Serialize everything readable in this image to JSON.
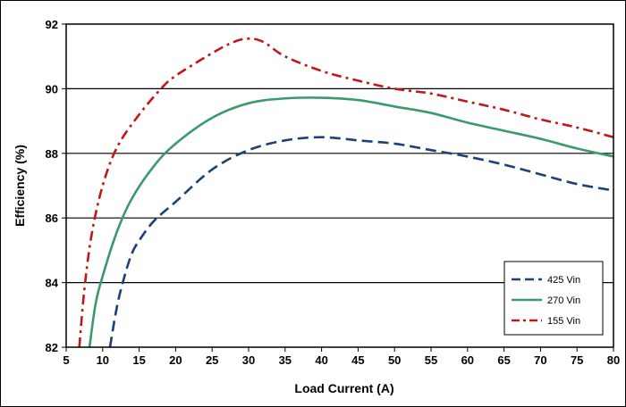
{
  "chart_data": {
    "type": "line",
    "title": "",
    "xlabel": "Load Current (A)",
    "ylabel": "Efficiency (%)",
    "xlim": [
      5,
      80
    ],
    "ylim": [
      82,
      92
    ],
    "xticks": [
      5,
      10,
      15,
      20,
      25,
      30,
      35,
      40,
      45,
      50,
      55,
      60,
      65,
      70,
      75,
      80
    ],
    "yticks": [
      82,
      84,
      86,
      88,
      90,
      92
    ],
    "grid": "horizontal",
    "legend_position": "bottom-right",
    "series": [
      {
        "name": "425 Vin",
        "color": "#1f3f7a",
        "dash": "dashed",
        "points": [
          [
            11,
            82
          ],
          [
            12,
            83.3
          ],
          [
            13,
            84.2
          ],
          [
            14,
            84.9
          ],
          [
            15,
            85.3
          ],
          [
            17,
            85.9
          ],
          [
            20,
            86.5
          ],
          [
            25,
            87.5
          ],
          [
            30,
            88.1
          ],
          [
            35,
            88.4
          ],
          [
            40,
            88.5
          ],
          [
            45,
            88.4
          ],
          [
            50,
            88.3
          ],
          [
            55,
            88.1
          ],
          [
            60,
            87.9
          ],
          [
            65,
            87.65
          ],
          [
            70,
            87.35
          ],
          [
            75,
            87.05
          ],
          [
            80,
            86.85
          ]
        ]
      },
      {
        "name": "270 Vin",
        "color": "#3a9a6a",
        "dash": "solid",
        "points": [
          [
            8.2,
            82
          ],
          [
            9,
            83.3
          ],
          [
            10,
            84.2
          ],
          [
            12,
            85.6
          ],
          [
            14,
            86.6
          ],
          [
            17,
            87.6
          ],
          [
            20,
            88.3
          ],
          [
            25,
            89.1
          ],
          [
            30,
            89.55
          ],
          [
            35,
            89.7
          ],
          [
            40,
            89.72
          ],
          [
            45,
            89.65
          ],
          [
            50,
            89.45
          ],
          [
            55,
            89.25
          ],
          [
            60,
            88.95
          ],
          [
            65,
            88.7
          ],
          [
            70,
            88.45
          ],
          [
            75,
            88.15
          ],
          [
            80,
            87.9
          ]
        ]
      },
      {
        "name": "155 Vin",
        "color": "#c01818",
        "dash": "dash-dot",
        "points": [
          [
            6.8,
            82
          ],
          [
            7.5,
            83.8
          ],
          [
            8.5,
            85.5
          ],
          [
            10,
            87
          ],
          [
            12,
            88.2
          ],
          [
            15,
            89.2
          ],
          [
            18,
            90
          ],
          [
            20,
            90.4
          ],
          [
            25,
            91.1
          ],
          [
            28,
            91.45
          ],
          [
            30,
            91.55
          ],
          [
            32,
            91.45
          ],
          [
            35,
            91
          ],
          [
            40,
            90.55
          ],
          [
            45,
            90.25
          ],
          [
            50,
            90
          ],
          [
            55,
            89.85
          ],
          [
            60,
            89.6
          ],
          [
            65,
            89.35
          ],
          [
            70,
            89.05
          ],
          [
            75,
            88.8
          ],
          [
            80,
            88.5
          ]
        ]
      }
    ]
  }
}
